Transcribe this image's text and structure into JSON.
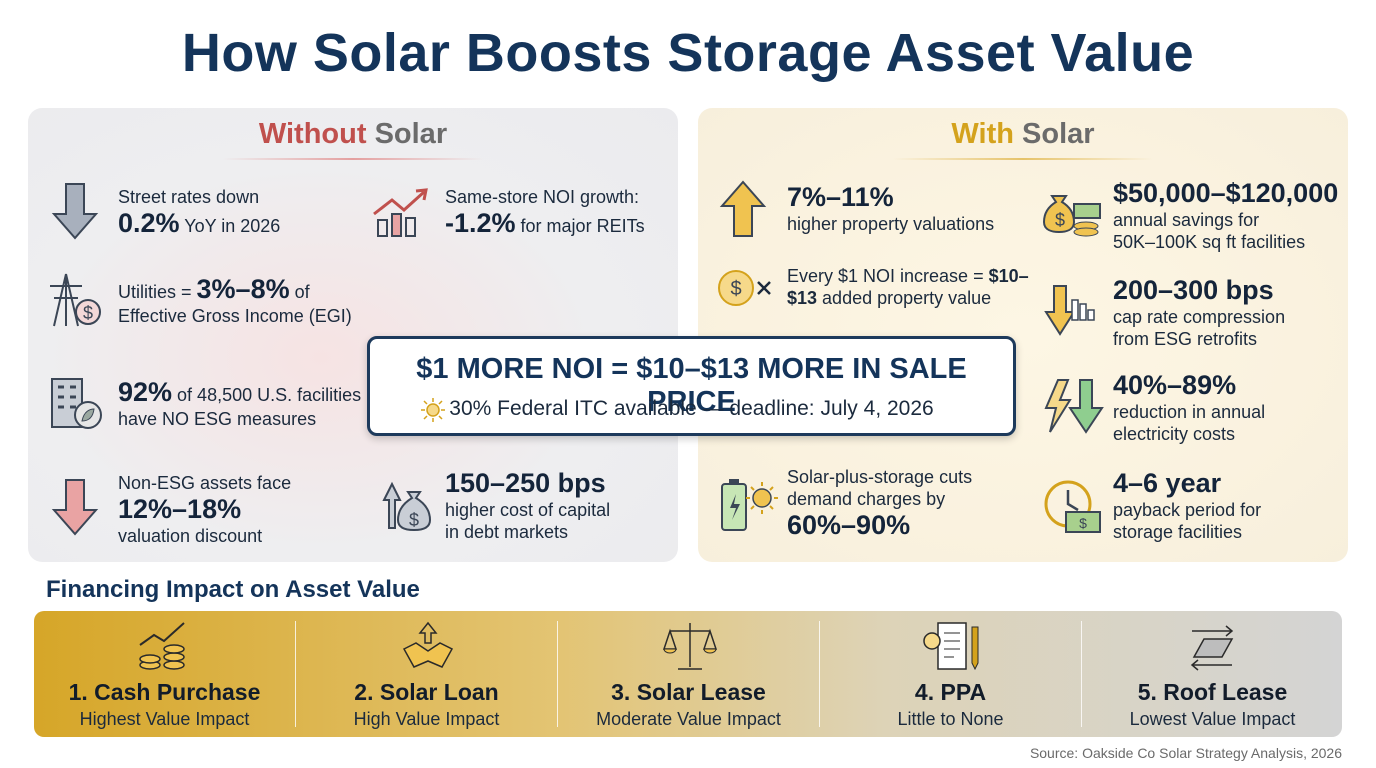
{
  "title": "How Solar Boosts Storage Asset Value",
  "without": {
    "title": [
      "Without",
      " Solar"
    ],
    "items": [
      {
        "lines": [
          [
            {
              "n": "Street rates down"
            }
          ],
          [
            {
              "x": "0.2%"
            },
            {
              "n": " YoY in 2026"
            }
          ]
        ]
      },
      {
        "lines": [
          [
            {
              "n": "Same-store NOI growth:"
            }
          ],
          [
            {
              "x": "-1.2%"
            },
            {
              "n": " for major REITs"
            }
          ]
        ]
      },
      {
        "lines": [
          [
            {
              "n": "Utilities = "
            },
            {
              "x": "3%–8%"
            },
            {
              "n": " of"
            }
          ],
          [
            {
              "n": "Effective Gross Income (EGI)"
            }
          ]
        ]
      },
      {
        "lines": [
          [
            {
              "x": "92%"
            },
            {
              "n": " of 48,500 U.S. facilities"
            }
          ],
          [
            {
              "n": "have NO ESG measures"
            }
          ]
        ]
      },
      {
        "lines": [
          [
            {
              "n": "Non-ESG assets face"
            }
          ],
          [
            {
              "x": "12%–18%"
            }
          ],
          [
            {
              "n": "valuation discount"
            }
          ]
        ]
      },
      {
        "lines": [
          [
            {
              "x": "150–250 bps"
            }
          ],
          [
            {
              "n": "higher cost of capital"
            }
          ],
          [
            {
              "n": "in debt markets"
            }
          ]
        ]
      }
    ]
  },
  "with": {
    "title": [
      "With",
      " Solar"
    ],
    "items": [
      {
        "lines": [
          [
            {
              "x": "7%–11%"
            }
          ],
          [
            {
              "n": "higher property valuations"
            }
          ]
        ]
      },
      {
        "lines": [
          [
            {
              "x": "$50,000–$120,000"
            }
          ],
          [
            {
              "n": "annual savings for"
            }
          ],
          [
            {
              "n": "50K–100K sq ft facilities"
            }
          ]
        ]
      },
      {
        "lines": [
          [
            {
              "n": "Every $1 NOI increase = "
            },
            {
              "b": "$10–"
            }
          ],
          [
            {
              "b": "$13"
            },
            {
              "n": " added property value"
            }
          ]
        ]
      },
      {
        "lines": [
          [
            {
              "x": "200–300 bps"
            }
          ],
          [
            {
              "n": "cap rate compression"
            }
          ],
          [
            {
              "n": "from ESG retrofits"
            }
          ]
        ]
      },
      {
        "lines": [
          [
            {
              "x": "40%–89%"
            }
          ],
          [
            {
              "n": "reduction in annual"
            }
          ],
          [
            {
              "n": "electricity costs"
            }
          ]
        ]
      },
      {
        "lines": [
          [
            {
              "n": "Solar-plus-storage cuts"
            }
          ],
          [
            {
              "n": "demand charges by"
            }
          ],
          [
            {
              "x": "60%–90%"
            }
          ]
        ]
      },
      {
        "lines": [
          [
            {
              "x": "4–6 year"
            }
          ],
          [
            {
              "n": "payback period for"
            }
          ],
          [
            {
              "n": "storage facilities"
            }
          ]
        ]
      }
    ]
  },
  "callout": {
    "main": "$1 MORE NOI = $10–$13 MORE IN SALE PRICE",
    "sub": "30% Federal ITC available — deadline: July 4, 2026"
  },
  "financing": {
    "title": "Financing Impact on Asset Value",
    "options": [
      {
        "name": "1. Cash Purchase",
        "impact": "Highest Value Impact"
      },
      {
        "name": "2. Solar Loan",
        "impact": "High Value Impact"
      },
      {
        "name": "3. Solar Lease",
        "impact": "Moderate Value Impact"
      },
      {
        "name": "4. PPA",
        "impact": "Little to None"
      },
      {
        "name": "5. Roof Lease",
        "impact": "Lowest Value Impact"
      }
    ]
  },
  "source": "Source: Oakside Co Solar Strategy Analysis, 2026"
}
